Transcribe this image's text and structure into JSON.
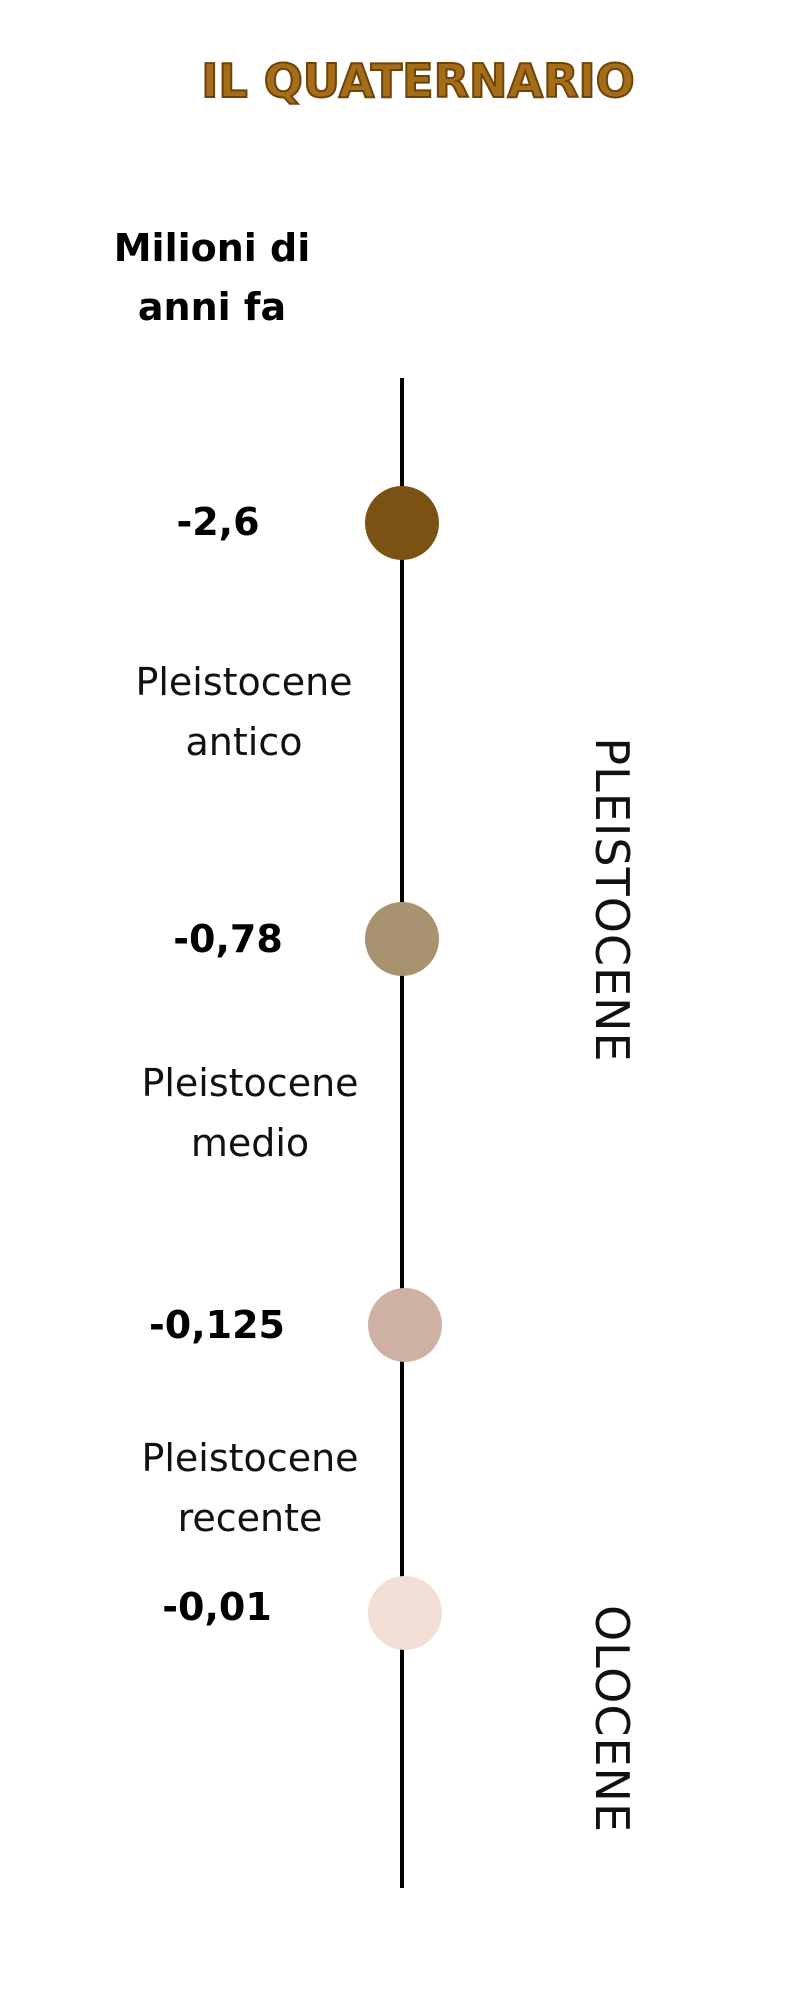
{
  "title": "IL QUATERNARIO",
  "axis_title_line1": "Milioni di",
  "axis_title_line2": "anni fa",
  "markers": [
    {
      "time": "-2,6",
      "color": "#7b5214"
    },
    {
      "time": "-0,78",
      "color": "#a89270"
    },
    {
      "time": "-0,125",
      "color": "#cfb1a3"
    },
    {
      "time": "-0,01",
      "color": "#f2ded4"
    }
  ],
  "periods": [
    {
      "line1": "Pleistocene",
      "line2": "antico"
    },
    {
      "line1": "Pleistocene",
      "line2": "medio"
    },
    {
      "line1": "Pleistocene",
      "line2": "recente"
    }
  ],
  "epochs": [
    "PLEISTOCENE",
    "OLOCENE"
  ]
}
